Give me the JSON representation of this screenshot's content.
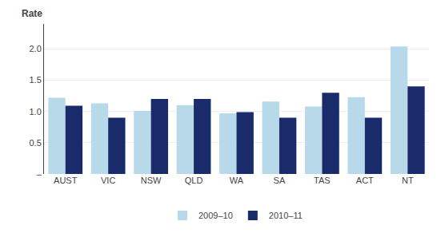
{
  "chart_data": {
    "type": "bar",
    "ylabel": "Rate",
    "categories": [
      "AUST",
      "VIC",
      "NSW",
      "QLD",
      "WA",
      "SA",
      "TAS",
      "ACT",
      "NT"
    ],
    "series": [
      {
        "name": "2009–10",
        "color": "#b8d9ea",
        "values": [
          1.22,
          1.13,
          1.01,
          1.1,
          0.97,
          1.16,
          1.08,
          1.23,
          2.04
        ]
      },
      {
        "name": "2010–11",
        "color": "#1a2b6b",
        "values": [
          1.09,
          0.9,
          1.2,
          1.2,
          0.99,
          0.9,
          1.3,
          0.9,
          1.4
        ]
      }
    ],
    "ylim": [
      0,
      2.4
    ],
    "yticks": [
      {
        "value": 0,
        "label": "–"
      },
      0.5,
      {
        "value": 1,
        "label": "1.0"
      },
      1.5,
      {
        "value": 2,
        "label": "2.0"
      }
    ],
    "grid": true,
    "legend": "bottom"
  }
}
